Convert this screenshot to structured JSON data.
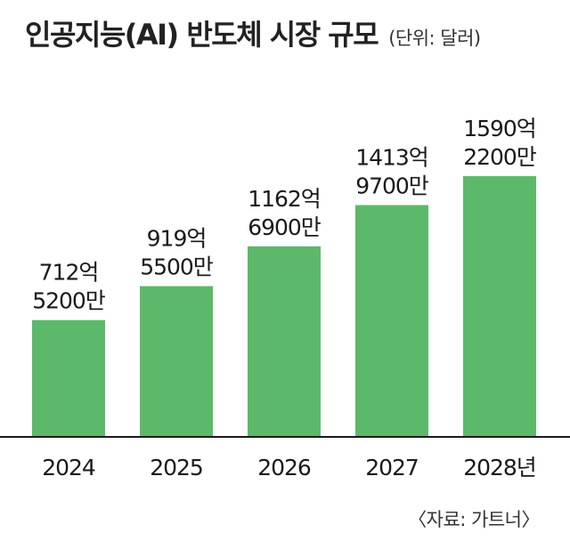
{
  "title": "인공지능(AI) 반도체 시장 규모",
  "unit": "(단위: 달러)",
  "source": "〈자료: 가트너〉",
  "colors": {
    "bar": "#5cb96a",
    "baseline": "#1a1a1a"
  },
  "chart_data": {
    "type": "bar",
    "categories": [
      "2024",
      "2025",
      "2026",
      "2027",
      "2028년"
    ],
    "values": [
      71252000000,
      91955000000,
      116269000000,
      141397000000,
      159022000000
    ],
    "value_labels": [
      [
        "712억",
        "5200만"
      ],
      [
        "919억",
        "5500만"
      ],
      [
        "1162억",
        "6900만"
      ],
      [
        "1413억",
        "9700만"
      ],
      [
        "1590억",
        "2200만"
      ]
    ],
    "title": "인공지능(AI) 반도체 시장 규모",
    "ylabel": "",
    "grid": false
  }
}
